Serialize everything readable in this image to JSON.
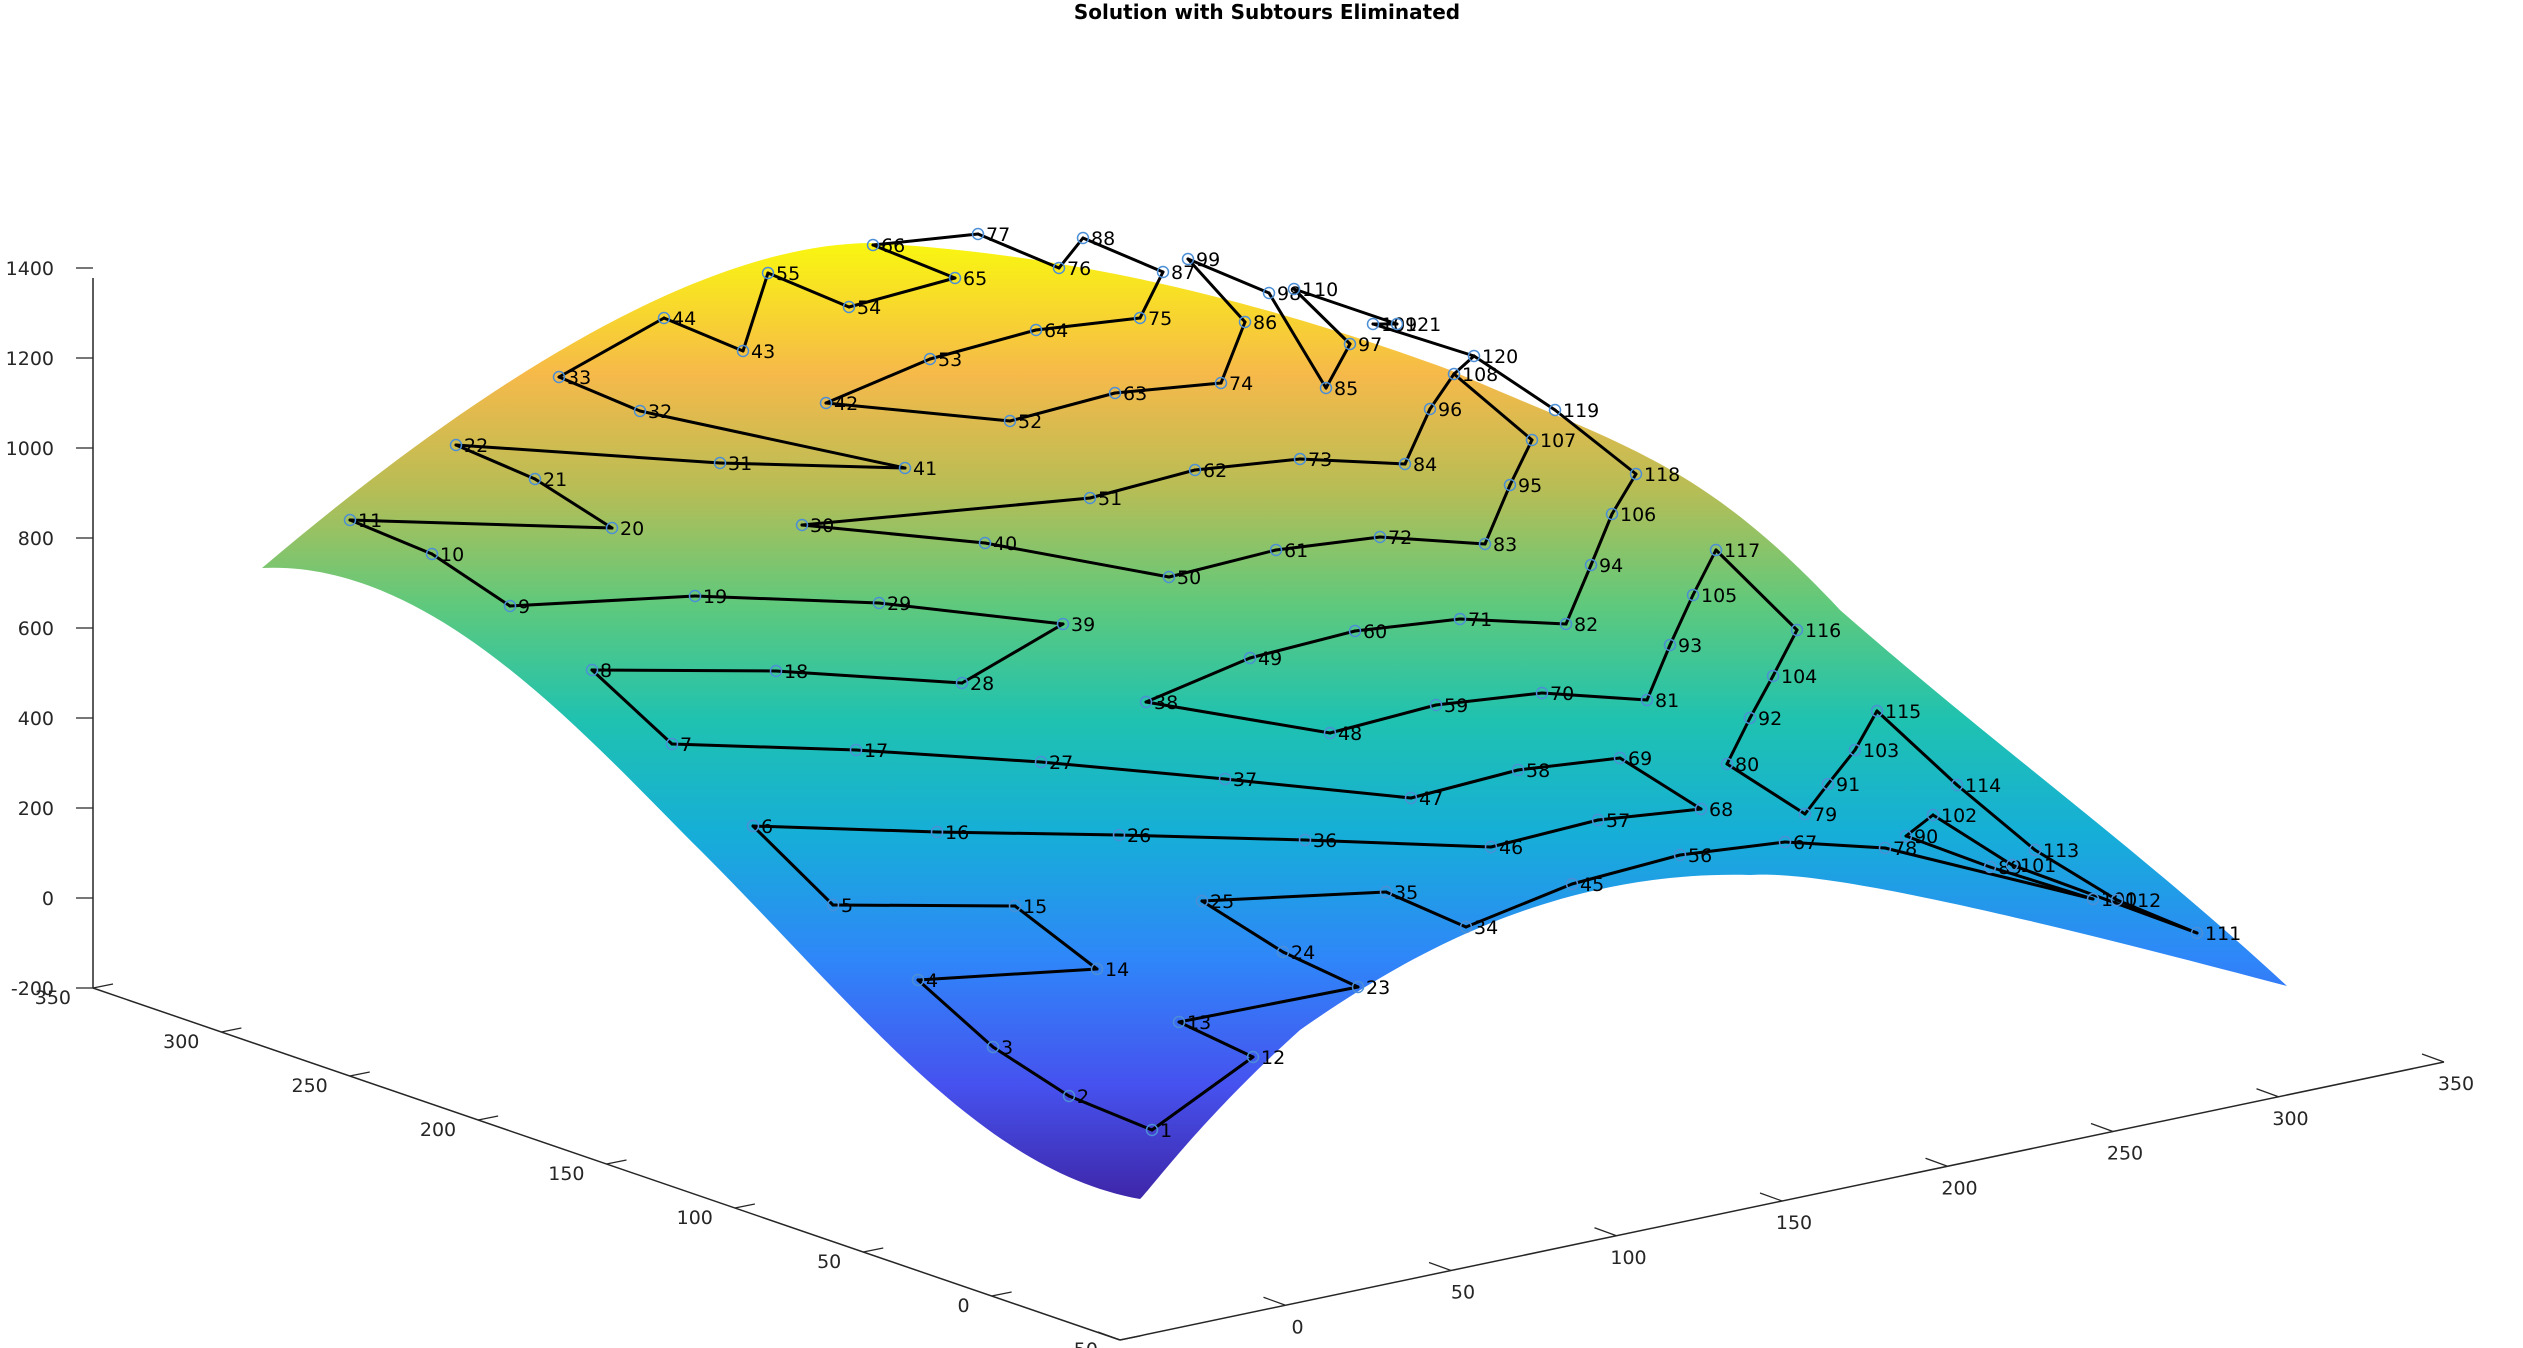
{
  "chart_data": {
    "type": "line",
    "title": "Solution with Subtours Eliminated",
    "surface_colormap": "parula",
    "z_axis": {
      "ticks": [
        -200,
        0,
        200,
        400,
        600,
        800,
        1000,
        1200,
        1400
      ],
      "range": [
        -200,
        1400
      ]
    },
    "x_axis": {
      "ticks": [
        -50,
        0,
        50,
        100,
        150,
        200,
        250,
        300,
        350
      ],
      "range": [
        -50,
        350
      ]
    },
    "y_axis": {
      "ticks": [
        -50,
        0,
        50,
        100,
        150,
        200,
        250,
        300,
        350
      ],
      "range": [
        -50,
        350
      ]
    },
    "grid": false,
    "tour_nodes": [
      "1",
      "2",
      "3",
      "4",
      "5",
      "6",
      "7",
      "8",
      "9",
      "10",
      "11",
      "12",
      "13",
      "14",
      "15",
      "16",
      "17",
      "18",
      "19",
      "20",
      "21",
      "22",
      "23",
      "24",
      "25",
      "26",
      "27",
      "28",
      "29",
      "30",
      "31",
      "32",
      "33",
      "34",
      "35",
      "36",
      "37",
      "38",
      "39",
      "40",
      "41",
      "42",
      "43",
      "44",
      "45",
      "46",
      "47",
      "48",
      "49",
      "50",
      "51",
      "52",
      "53",
      "54",
      "55",
      "56",
      "57",
      "58",
      "59",
      "60",
      "61",
      "62",
      "63",
      "64",
      "65",
      "66",
      "67",
      "68",
      "69",
      "70",
      "71",
      "72",
      "73",
      "74",
      "75",
      "76",
      "77",
      "78",
      "79",
      "80",
      "81",
      "82",
      "83",
      "84",
      "85",
      "86",
      "87",
      "88",
      "89",
      "90",
      "91",
      "92",
      "93",
      "94",
      "95",
      "96",
      "97",
      "98",
      "99",
      "100",
      "101",
      "102",
      "103",
      "104",
      "105",
      "106",
      "107",
      "108",
      "109",
      "110",
      "111",
      "112",
      "113",
      "114",
      "115",
      "116",
      "117",
      "118",
      "119",
      "120",
      "121"
    ]
  }
}
